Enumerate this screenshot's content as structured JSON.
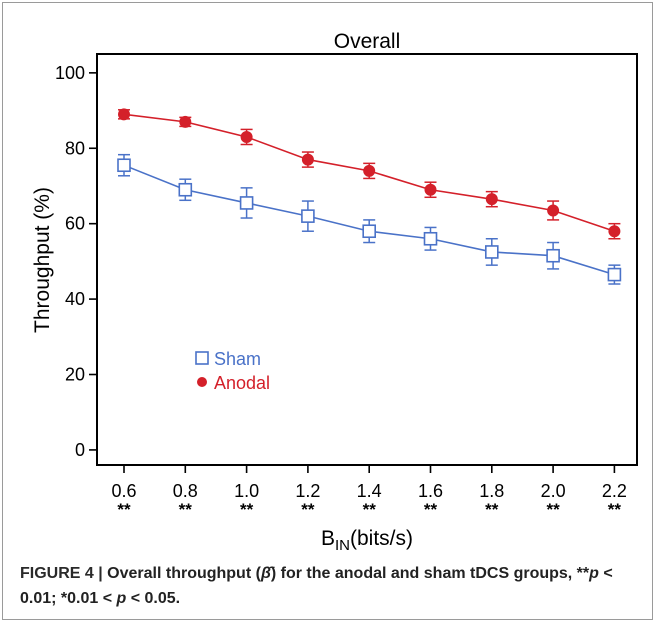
{
  "chart_data": {
    "type": "line",
    "title": "Overall",
    "xlabel": "B",
    "xlabel_sub": "IN",
    "xlabel_units": "(bits/s)",
    "ylabel": "Throughput (%)",
    "categories": [
      "0.6",
      "0.8",
      "1.0",
      "1.2",
      "1.4",
      "1.6",
      "1.8",
      "2.0",
      "2.2"
    ],
    "significance": [
      "**",
      "**",
      "**",
      "**",
      "**",
      "**",
      "**",
      "**",
      "**"
    ],
    "ylim": [
      -4,
      105
    ],
    "yticks": [
      0,
      20,
      40,
      60,
      80,
      100
    ],
    "grid": false,
    "legend_position": "lower-left",
    "series": [
      {
        "name": "Sham",
        "marker": "open-square",
        "color": "#4a72c8",
        "values": [
          75.5,
          69,
          65.5,
          62,
          58,
          56,
          52.5,
          51.5,
          46.5
        ],
        "error": [
          2.8,
          2.8,
          4,
          4,
          3,
          3,
          3.5,
          3.5,
          2.5
        ]
      },
      {
        "name": "Anodal",
        "marker": "filled-circle",
        "color": "#d4202a",
        "values": [
          89,
          87,
          83,
          77,
          74,
          69,
          66.5,
          63.5,
          58
        ],
        "error": [
          1.2,
          1.2,
          2,
          2,
          2,
          2,
          2,
          2.5,
          2
        ]
      }
    ]
  },
  "caption": {
    "label": "FIGURE 4 | ",
    "text_1": "Overall throughput (",
    "beta": "β̄",
    "text_2": ") for the anodal and sham tDCS groups, **",
    "p1": "p",
    "text_3": " < 0.01; *0.01 < ",
    "p2": "p",
    "text_4": " < 0.05."
  }
}
